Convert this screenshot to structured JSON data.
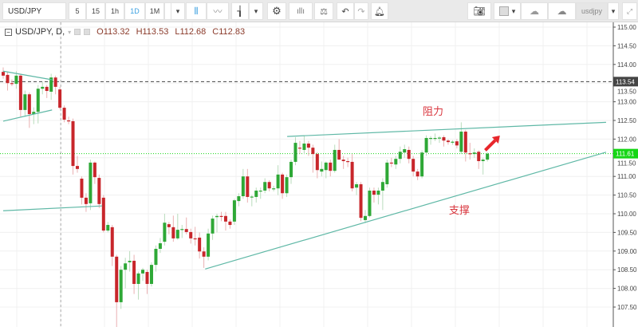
{
  "toolbar": {
    "symbol": "USD/JPY",
    "intervals": [
      "5",
      "15",
      "1h",
      "1D",
      "1M",
      "15"
    ],
    "active_interval": "1D",
    "chart_types": [
      "candle-icon",
      "line-chart-icon",
      "bar-chart-icon"
    ],
    "tools": [
      "gear-icon",
      "indicators-icon",
      "compare-icon",
      "undo-icon",
      "redo-icon",
      "alert-add-icon"
    ],
    "right_tools": [
      "camera-icon",
      "color-swatch",
      "cloud-download-icon",
      "cloud-upload-icon"
    ],
    "layout_name": "usdjpy",
    "fullscreen_icon": "expand-icon"
  },
  "legend": {
    "symbol": "USD/JPY, D,",
    "open": "O113.32",
    "high": "H113.53",
    "low": "L112.68",
    "close": "C112.83"
  },
  "colors": {
    "up": "#2ea836",
    "down": "#c8262b",
    "trendline": "#5fb8a6",
    "last_price": "#15d615",
    "ref_price": "#444444",
    "annotation": "#d9363e"
  },
  "chart_data": {
    "type": "candlestick",
    "yaxis": {
      "min": 107.5,
      "max": 115.0,
      "ticks": [
        "115.00",
        "114.50",
        "114.00",
        "113.50",
        "113.00",
        "112.50",
        "112.00",
        "111.50",
        "111.00",
        "110.50",
        "110.00",
        "109.50",
        "109.00",
        "108.50",
        "108.00",
        "107.50"
      ]
    },
    "price_labels": [
      {
        "value": "113.54",
        "style": "dashed",
        "color": "#444444"
      },
      {
        "value": "111.61",
        "style": "dotted",
        "color": "#15d615"
      }
    ],
    "ohlc": [
      [
        113.8,
        113.92,
        113.62,
        113.7
      ],
      [
        113.72,
        113.8,
        113.3,
        113.5
      ],
      [
        113.5,
        113.6,
        113.42,
        113.48
      ],
      [
        113.48,
        113.82,
        113.35,
        113.7
      ],
      [
        113.7,
        113.75,
        112.6,
        112.78
      ],
      [
        112.78,
        113.3,
        112.6,
        113.2
      ],
      [
        113.2,
        113.25,
        112.3,
        112.67
      ],
      [
        112.67,
        112.85,
        112.4,
        112.73
      ],
      [
        112.73,
        113.45,
        112.42,
        113.35
      ],
      [
        113.35,
        113.53,
        113.2,
        113.4
      ],
      [
        113.4,
        113.45,
        113.1,
        113.29
      ],
      [
        113.27,
        113.75,
        113.05,
        113.65
      ],
      [
        113.65,
        113.7,
        113.2,
        113.4
      ],
      [
        113.33,
        113.4,
        112.8,
        112.84
      ],
      [
        112.84,
        112.9,
        112.45,
        112.52
      ],
      [
        112.5,
        112.6,
        112.4,
        112.48
      ],
      [
        112.48,
        112.55,
        111.05,
        111.28
      ],
      [
        111.28,
        111.55,
        111.1,
        111.2
      ],
      [
        110.94,
        111.0,
        110.25,
        110.43
      ],
      [
        110.43,
        110.55,
        110.05,
        110.26
      ],
      [
        110.28,
        111.45,
        110.1,
        111.37
      ],
      [
        111.37,
        111.4,
        110.8,
        110.98
      ],
      [
        110.96,
        111.05,
        110.15,
        110.26
      ],
      [
        110.43,
        110.5,
        109.5,
        109.55
      ],
      [
        109.55,
        109.78,
        109.5,
        109.7
      ],
      [
        109.64,
        109.7,
        108.6,
        108.85
      ],
      [
        108.85,
        108.9,
        106.9,
        107.63
      ],
      [
        107.63,
        108.6,
        107.45,
        108.5
      ],
      [
        108.5,
        108.82,
        108.0,
        108.67
      ],
      [
        108.7,
        109.0,
        108.45,
        108.74
      ],
      [
        108.74,
        108.9,
        107.85,
        108.12
      ],
      [
        108.12,
        108.45,
        107.7,
        108.4
      ],
      [
        108.4,
        108.55,
        108.2,
        108.5
      ],
      [
        108.44,
        108.5,
        107.85,
        108.12
      ],
      [
        108.12,
        108.7,
        108.05,
        108.63
      ],
      [
        108.63,
        109.15,
        108.45,
        109.06
      ],
      [
        109.06,
        109.35,
        108.95,
        109.21
      ],
      [
        109.25,
        110.0,
        109.15,
        109.76
      ],
      [
        109.72,
        109.78,
        109.45,
        109.64
      ],
      [
        109.64,
        109.95,
        109.25,
        109.34
      ],
      [
        109.34,
        110.0,
        109.3,
        109.57
      ],
      [
        109.57,
        109.7,
        109.35,
        109.59
      ],
      [
        109.59,
        109.9,
        109.45,
        109.51
      ],
      [
        109.51,
        109.6,
        109.2,
        109.34
      ],
      [
        109.34,
        109.65,
        109.15,
        109.33
      ],
      [
        109.36,
        109.5,
        108.8,
        108.99
      ],
      [
        108.99,
        109.1,
        108.55,
        108.85
      ],
      [
        108.85,
        109.6,
        108.75,
        109.47
      ],
      [
        109.47,
        109.95,
        109.3,
        109.87
      ],
      [
        109.91,
        110.0,
        109.5,
        109.94
      ],
      [
        109.94,
        110.05,
        109.8,
        109.93
      ],
      [
        109.94,
        110.05,
        109.55,
        109.79
      ],
      [
        109.79,
        109.85,
        109.6,
        109.7
      ],
      [
        109.79,
        110.4,
        109.7,
        110.36
      ],
      [
        110.34,
        110.55,
        110.2,
        110.47
      ],
      [
        110.47,
        111.2,
        110.4,
        111.0
      ],
      [
        111.0,
        111.2,
        110.3,
        110.45
      ],
      [
        110.45,
        110.5,
        110.2,
        110.46
      ],
      [
        110.45,
        110.7,
        110.3,
        110.62
      ],
      [
        110.62,
        110.7,
        110.4,
        110.62
      ],
      [
        110.62,
        110.95,
        110.55,
        110.85
      ],
      [
        110.85,
        110.9,
        110.6,
        110.68
      ],
      [
        110.68,
        110.75,
        110.6,
        110.68
      ],
      [
        110.68,
        111.3,
        110.5,
        111.05
      ],
      [
        111.05,
        111.1,
        110.4,
        110.55
      ],
      [
        110.55,
        111.05,
        110.45,
        110.98
      ],
      [
        110.98,
        111.45,
        110.8,
        111.39
      ],
      [
        111.39,
        112.05,
        111.3,
        111.9
      ],
      [
        111.77,
        111.95,
        111.6,
        111.75
      ],
      [
        111.71,
        112.1,
        111.6,
        111.88
      ],
      [
        111.88,
        111.95,
        111.55,
        111.77
      ],
      [
        111.77,
        111.85,
        111.1,
        111.6
      ],
      [
        111.6,
        111.65,
        110.95,
        111.17
      ],
      [
        111.13,
        111.4,
        111.0,
        111.2
      ],
      [
        111.17,
        111.4,
        110.95,
        111.37
      ],
      [
        111.37,
        111.45,
        111.0,
        111.15
      ],
      [
        111.15,
        111.85,
        111.1,
        111.71
      ],
      [
        111.71,
        112.0,
        111.45,
        111.45
      ],
      [
        111.45,
        111.55,
        111.2,
        111.41
      ],
      [
        111.41,
        111.5,
        111.25,
        111.39
      ],
      [
        111.39,
        111.6,
        110.6,
        110.68
      ],
      [
        110.7,
        110.85,
        110.5,
        110.79
      ],
      [
        110.79,
        110.85,
        109.8,
        109.89
      ],
      [
        109.83,
        110.1,
        109.75,
        109.94
      ],
      [
        109.94,
        110.7,
        109.9,
        110.62
      ],
      [
        110.62,
        110.7,
        110.3,
        110.51
      ],
      [
        110.51,
        110.7,
        110.25,
        110.62
      ],
      [
        110.62,
        110.95,
        110.1,
        110.85
      ],
      [
        110.79,
        111.45,
        110.7,
        111.37
      ],
      [
        111.37,
        111.5,
        111.25,
        111.35
      ],
      [
        111.32,
        111.55,
        111.2,
        111.47
      ],
      [
        111.47,
        111.8,
        111.35,
        111.66
      ],
      [
        111.64,
        111.85,
        111.5,
        111.73
      ],
      [
        111.71,
        111.8,
        111.35,
        111.47
      ],
      [
        111.47,
        111.55,
        111.0,
        111.13
      ],
      [
        111.13,
        111.2,
        110.9,
        111.0
      ],
      [
        111.0,
        111.7,
        110.95,
        111.64
      ],
      [
        111.64,
        112.1,
        111.55,
        112.03
      ],
      [
        112.01,
        112.08,
        111.85,
        112.03
      ],
      [
        112.03,
        112.15,
        111.95,
        112.03
      ],
      [
        112.03,
        112.08,
        111.9,
        112.04
      ],
      [
        112.05,
        112.1,
        111.8,
        111.96
      ],
      [
        111.96,
        112.0,
        111.85,
        111.92
      ],
      [
        111.92,
        111.97,
        111.85,
        111.93
      ],
      [
        111.94,
        112.0,
        111.75,
        111.83
      ],
      [
        111.66,
        112.45,
        111.6,
        112.2
      ],
      [
        112.2,
        112.25,
        111.4,
        111.64
      ],
      [
        111.62,
        111.9,
        111.45,
        111.6
      ],
      [
        111.6,
        111.75,
        111.5,
        111.64
      ],
      [
        111.66,
        111.7,
        111.2,
        111.41
      ],
      [
        111.41,
        111.5,
        111.05,
        111.45
      ],
      [
        111.45,
        111.65,
        111.4,
        111.61
      ]
    ],
    "trendlines": [
      {
        "name": "resistance",
        "from": [
          65.1,
          112.07
        ],
        "to": [
          138.2,
          112.45
        ]
      },
      {
        "name": "support",
        "from": [
          46.3,
          108.52
        ],
        "to": [
          138.2,
          111.65
        ]
      },
      {
        "name": "triangle-upper",
        "from": [
          0,
          113.82
        ],
        "to": [
          11.2,
          113.59
        ]
      },
      {
        "name": "triangle-lower",
        "from": [
          0,
          112.48
        ],
        "to": [
          11.2,
          112.78
        ]
      },
      {
        "name": "old-support",
        "from": [
          0,
          110.08
        ],
        "to": [
          22.7,
          110.21
        ]
      }
    ],
    "vertical_marker_index": 13.2,
    "annotations": [
      {
        "text": "阻力",
        "index": 98,
        "price": 112.45
      },
      {
        "text": "支撑",
        "index": 104,
        "price": 109.8
      }
    ],
    "arrow": {
      "from": [
        110.5,
        111.7
      ],
      "to": [
        113.5,
        112.05
      ]
    }
  }
}
